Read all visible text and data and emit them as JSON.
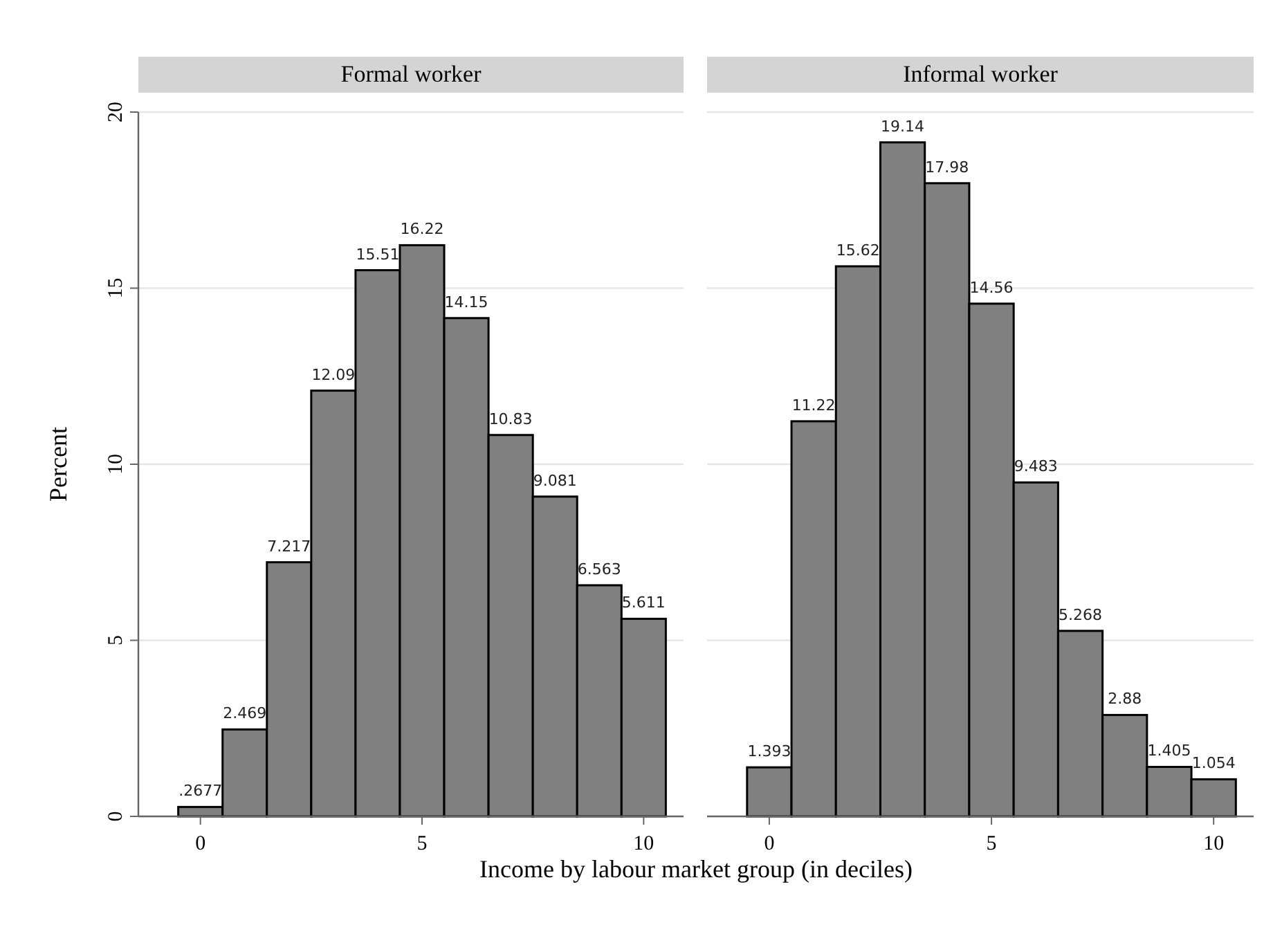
{
  "chart_data": [
    {
      "type": "histogram",
      "title": "Formal worker",
      "ylabel": "Percent",
      "xlabel": "Income by labour market group (in deciles)",
      "bins": [
        -0.5,
        0.5,
        1.5,
        2.5,
        3.5,
        4.5,
        5.5,
        6.5,
        7.5,
        8.5,
        9.5,
        10.5
      ],
      "values": [
        0.2677,
        2.469,
        7.217,
        12.09,
        15.51,
        16.22,
        14.15,
        10.83,
        9.081,
        6.563,
        5.611
      ],
      "color": "#808080",
      "value_labels": [
        ".2677",
        "2.469",
        "7.217",
        "12.09",
        "15.51",
        "16.22",
        "14.15",
        "10.83",
        "9.081",
        "6.563",
        "5.611"
      ],
      "xlim": [
        -1.4,
        10.9
      ],
      "xticks": [
        0,
        5,
        10
      ],
      "ylim": [
        0,
        20
      ],
      "yticks": [
        0,
        5,
        10,
        15,
        20
      ],
      "grid": "y"
    },
    {
      "type": "histogram",
      "title": "Informal worker",
      "bins": [
        -0.5,
        0.5,
        1.5,
        2.5,
        3.5,
        4.5,
        5.5,
        6.5,
        7.5,
        8.5,
        9.5,
        10.5
      ],
      "values": [
        1.393,
        11.22,
        15.62,
        19.14,
        17.98,
        14.56,
        9.483,
        5.268,
        2.88,
        1.405,
        1.054
      ],
      "color": "#808080",
      "value_labels": [
        "1.393",
        "11.22",
        "15.62",
        "19.14",
        "17.98",
        "14.56",
        "9.483",
        "5.268",
        "2.88",
        "1.405",
        "1.054"
      ],
      "xlim": [
        -1.4,
        10.9
      ],
      "xticks": [
        0,
        5,
        10
      ],
      "ylim": [
        0,
        20
      ],
      "yticks": [
        0,
        5,
        10,
        15,
        20
      ],
      "grid": "y",
      "tick_labels": "x"
    }
  ]
}
